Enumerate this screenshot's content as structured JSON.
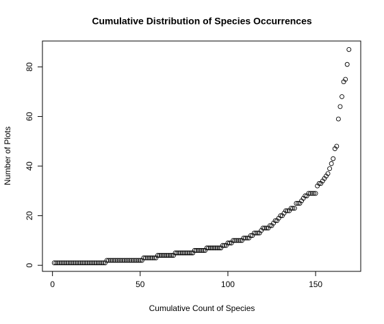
{
  "chart_data": {
    "type": "scatter",
    "title": "Cumulative Distribution of Species Occurrences",
    "x_label": "Cumulative Count of Species",
    "y_label": "Number of Plots",
    "color": "#000000",
    "xlim": [
      -5.72,
      175.72
    ],
    "ylim": [
      -2.44,
      90.44
    ],
    "xticks": [
      0,
      50,
      100,
      150
    ],
    "yticks": [
      0,
      20,
      40,
      60,
      80
    ],
    "x": [
      1,
      2,
      3,
      4,
      5,
      6,
      7,
      8,
      9,
      10,
      11,
      12,
      13,
      14,
      15,
      16,
      17,
      18,
      19,
      20,
      21,
      22,
      23,
      24,
      25,
      26,
      27,
      28,
      29,
      30,
      31,
      32,
      33,
      34,
      35,
      36,
      37,
      38,
      39,
      40,
      41,
      42,
      43,
      44,
      45,
      46,
      47,
      48,
      49,
      50,
      51,
      52,
      53,
      54,
      55,
      56,
      57,
      58,
      59,
      60,
      61,
      62,
      63,
      64,
      65,
      66,
      67,
      68,
      69,
      70,
      71,
      72,
      73,
      74,
      75,
      76,
      77,
      78,
      79,
      80,
      81,
      82,
      83,
      84,
      85,
      86,
      87,
      88,
      89,
      90,
      91,
      92,
      93,
      94,
      95,
      96,
      97,
      98,
      99,
      100,
      101,
      102,
      103,
      104,
      105,
      106,
      107,
      108,
      109,
      110,
      111,
      112,
      113,
      114,
      115,
      116,
      117,
      118,
      119,
      120,
      121,
      122,
      123,
      124,
      125,
      126,
      127,
      128,
      129,
      130,
      131,
      132,
      133,
      134,
      135,
      136,
      137,
      138,
      139,
      140,
      141,
      142,
      143,
      144,
      145,
      146,
      147,
      148,
      149,
      150,
      151,
      152,
      153,
      154,
      155,
      156,
      157,
      158,
      159,
      160,
      161,
      162,
      163,
      164,
      165,
      166,
      167,
      168,
      169
    ],
    "values": [
      1,
      1,
      1,
      1,
      1,
      1,
      1,
      1,
      1,
      1,
      1,
      1,
      1,
      1,
      1,
      1,
      1,
      1,
      1,
      1,
      1,
      1,
      1,
      1,
      1,
      1,
      1,
      1,
      1,
      1,
      2,
      2,
      2,
      2,
      2,
      2,
      2,
      2,
      2,
      2,
      2,
      2,
      2,
      2,
      2,
      2,
      2,
      2,
      2,
      2,
      2,
      3,
      3,
      3,
      3,
      3,
      3,
      3,
      3,
      4,
      4,
      4,
      4,
      4,
      4,
      4,
      4,
      4,
      4,
      5,
      5,
      5,
      5,
      5,
      5,
      5,
      5,
      5,
      5,
      5,
      6,
      6,
      6,
      6,
      6,
      6,
      6,
      7,
      7,
      7,
      7,
      7,
      7,
      7,
      7,
      7,
      8,
      8,
      8,
      9,
      9,
      9,
      10,
      10,
      10,
      10,
      10,
      10,
      11,
      11,
      11,
      11,
      12,
      12,
      13,
      13,
      13,
      13,
      14,
      15,
      15,
      15,
      15,
      16,
      16,
      17,
      18,
      18,
      19,
      20,
      20,
      21,
      22,
      22,
      22,
      23,
      23,
      23,
      25,
      25,
      25,
      26,
      27,
      28,
      28,
      29,
      29,
      29,
      29,
      29,
      32,
      33,
      33,
      34,
      35,
      36,
      37,
      39,
      41,
      43,
      47,
      48,
      59,
      64,
      68,
      74,
      75,
      81,
      87
    ]
  }
}
